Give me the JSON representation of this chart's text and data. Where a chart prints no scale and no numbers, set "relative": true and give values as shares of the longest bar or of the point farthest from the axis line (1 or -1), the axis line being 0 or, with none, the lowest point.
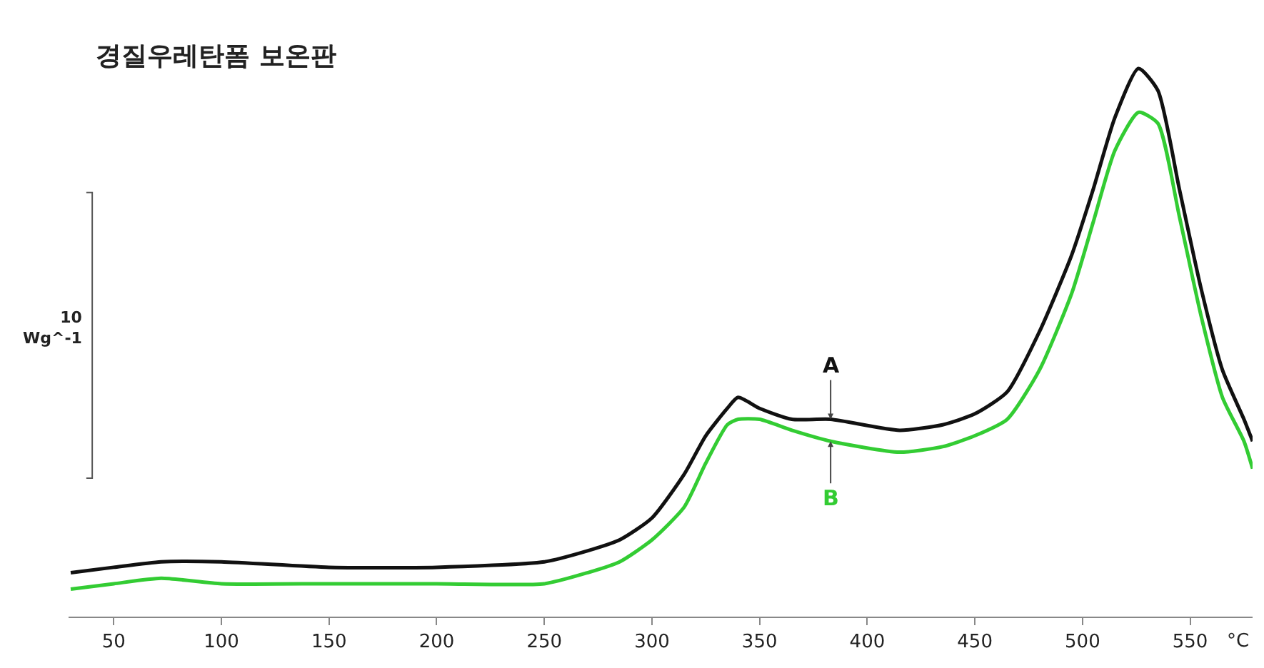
{
  "chart_data": {
    "type": "line",
    "title": "경질우레탄폼 보온판",
    "xlabel": "°C",
    "relative": true,
    "x": [
      30,
      50,
      72,
      100,
      150,
      200,
      250,
      270,
      285,
      300,
      315,
      325,
      335,
      340,
      350,
      365,
      383,
      415,
      435,
      450,
      465,
      480,
      495,
      505,
      515,
      526,
      535,
      545,
      555,
      565,
      575,
      579
    ],
    "series": [
      {
        "color": "#111111",
        "values": [
          0.08,
          0.09,
          0.1,
          0.1,
          0.09,
          0.09,
          0.1,
          0.12,
          0.14,
          0.18,
          0.26,
          0.33,
          0.38,
          0.4,
          0.38,
          0.36,
          0.36,
          0.34,
          0.35,
          0.37,
          0.41,
          0.52,
          0.66,
          0.78,
          0.91,
          1.0,
          0.96,
          0.78,
          0.6,
          0.45,
          0.36,
          0.32
        ]
      },
      {
        "color": "#33cc33",
        "values": [
          0.05,
          0.06,
          0.07,
          0.06,
          0.06,
          0.06,
          0.06,
          0.08,
          0.1,
          0.14,
          0.2,
          0.28,
          0.35,
          0.36,
          0.36,
          0.34,
          0.32,
          0.3,
          0.31,
          0.33,
          0.36,
          0.45,
          0.59,
          0.72,
          0.85,
          0.92,
          0.9,
          0.73,
          0.55,
          0.4,
          0.32,
          0.27
        ]
      }
    ],
    "xlim": [
      29,
      579
    ],
    "xticks": [
      50,
      100,
      150,
      200,
      250,
      300,
      350,
      400,
      450,
      500,
      550
    ],
    "annotations": [
      "10\nWg^-1",
      {
        "text": "A",
        "x": 383,
        "y": 0.36
      },
      {
        "text": "B",
        "x": 383,
        "y": 0.32
      }
    ],
    "marker": "none",
    "line_style": "solid"
  }
}
